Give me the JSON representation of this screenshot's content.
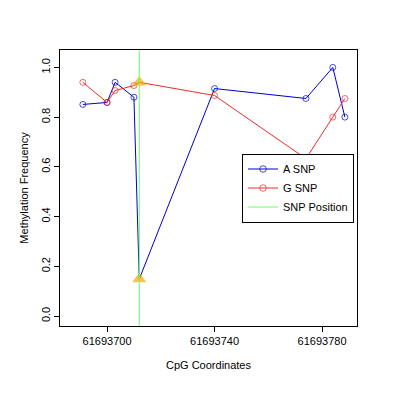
{
  "chart_data": {
    "type": "line",
    "x_label": "CpG Coordinates",
    "y_label": "Methylation Frequency",
    "x": [
      61693691,
      61693700,
      61693703,
      61693710,
      61693712,
      61693740,
      61693774,
      61693784,
      61693788.5
    ],
    "series": [
      {
        "name": "A SNP",
        "color": "#0000cd",
        "marker": "circle-open",
        "values": [
          0.851,
          0.859,
          0.94,
          0.88,
          0.149,
          0.915,
          0.875,
          1.0,
          0.8
        ]
      },
      {
        "name": "G SNP",
        "color": "#ee2c2c",
        "marker": "circle-open",
        "values": [
          0.94,
          0.859,
          0.907,
          0.927,
          0.94,
          0.887,
          0.633,
          0.8,
          0.875
        ]
      }
    ],
    "snp": {
      "name": "SNP Position",
      "x": 61693712,
      "color": "#66ff66",
      "marker": "triangle-up",
      "marker_color": "#ffa500"
    },
    "xlim": [
      61693682.5,
      61693793
    ],
    "xticks": [
      61693700,
      61693740,
      61693780
    ],
    "ylim": [
      -0.04,
      1.07
    ],
    "yticks": [
      {
        "value": 0,
        "label": "0.0"
      },
      {
        "value": 0.2,
        "label": "0.2"
      },
      {
        "value": 0.4,
        "label": "0.4"
      },
      {
        "value": 0.6,
        "label": "0.6"
      },
      {
        "value": 0.8,
        "label": "0.8"
      },
      {
        "value": 1.0,
        "label": "1.0"
      }
    ],
    "legend": "right",
    "grid": false
  }
}
